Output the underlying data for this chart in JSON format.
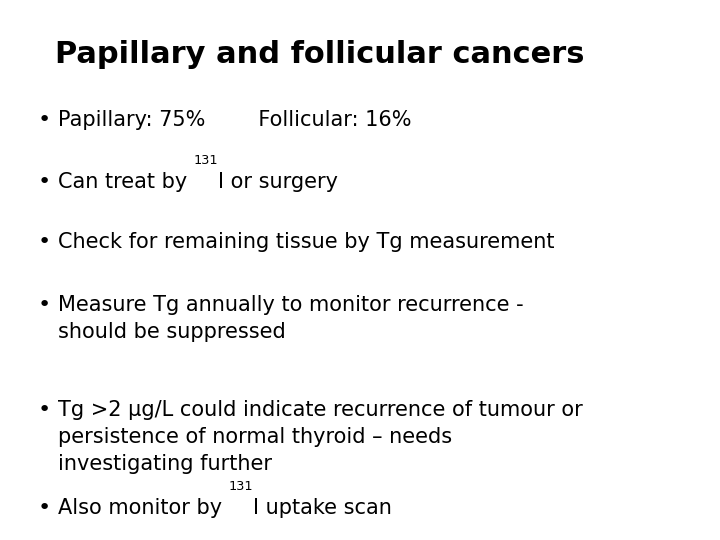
{
  "title": "Papillary and follicular cancers",
  "title_fontsize": 22,
  "title_fontweight": "bold",
  "background_color": "#ffffff",
  "text_color": "#000000",
  "bullet_fontsize": 15,
  "bullet_char": "•",
  "items": [
    {
      "type": "simple",
      "text": "Papillary: 75%        Follicular: 16%"
    },
    {
      "type": "super",
      "parts": [
        {
          "t": "Can treat by ",
          "s": false
        },
        {
          "t": "131",
          "s": true
        },
        {
          "t": "I or surgery",
          "s": false
        }
      ]
    },
    {
      "type": "simple",
      "text": "Check for remaining tissue by Tg measurement"
    },
    {
      "type": "simple",
      "text": "Measure Tg annually to monitor recurrence -\nshould be suppressed"
    },
    {
      "type": "simple",
      "text": "Tg >2 μg/L could indicate recurrence of tumour or\npersistence of normal thyroid – needs\ninvestigating further"
    },
    {
      "type": "super",
      "parts": [
        {
          "t": "Also monitor by ",
          "s": false
        },
        {
          "t": "131",
          "s": true
        },
        {
          "t": "I uptake scan",
          "s": false
        }
      ]
    }
  ]
}
